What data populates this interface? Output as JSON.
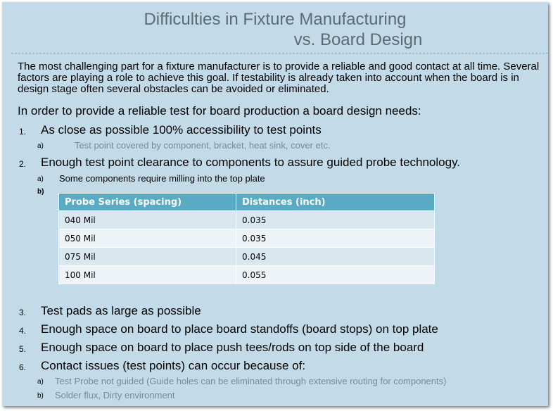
{
  "title_line1": "Difficulties in Fixture Manufacturing",
  "title_line2": "vs. Board Design",
  "paragraph1": "The most challenging part for a fixture manufacturer is to provide a reliable and good contact at all time. Several factors are playing a role to achieve this goal. If testability is already taken into account when the board is in design stage often several obstacles can be avoided or eliminated.",
  "paragraph2": "In order to provide a reliable test for board production a board design needs:",
  "items": [
    {
      "num": "1.",
      "text": "As close as possible 100% accessibility to test points"
    },
    {
      "num": "2.",
      "text": "Enough test point clearance to components to assure guided probe technology."
    },
    {
      "num": "3.",
      "text": "Test pads as large as possible"
    },
    {
      "num": "4.",
      "text": "Enough space on board to place board standoffs (board stops) on top plate"
    },
    {
      "num": "5.",
      "text": "Enough space on board to place push tees/rods on top side of the board"
    },
    {
      "num": "6.",
      "text": "Contact issues (test points) can occur because of:"
    }
  ],
  "subitems": {
    "item1_a": {
      "letter": "a)",
      "text": "Test point covered by component, bracket, heat sink, cover etc."
    },
    "item2_a": {
      "letter": "a)",
      "text": "Some components require milling into the top plate"
    },
    "item2_b": {
      "letter": "b)"
    },
    "item6_a": {
      "letter": "a)",
      "text": "Test Probe not guided (Guide holes can be eliminated through extensive routing for components)"
    },
    "item6_b": {
      "letter": "b)",
      "text": "Solder flux, Dirty environment"
    }
  },
  "table": {
    "headers": [
      "Probe Series (spacing)",
      "Distances  (inch)"
    ],
    "rows": [
      [
        "040 Mil",
        "0.035"
      ],
      [
        "050 Mil",
        "0.035"
      ],
      [
        "075 Mil",
        "0.045"
      ],
      [
        "100 Mil",
        "0.055"
      ]
    ]
  }
}
